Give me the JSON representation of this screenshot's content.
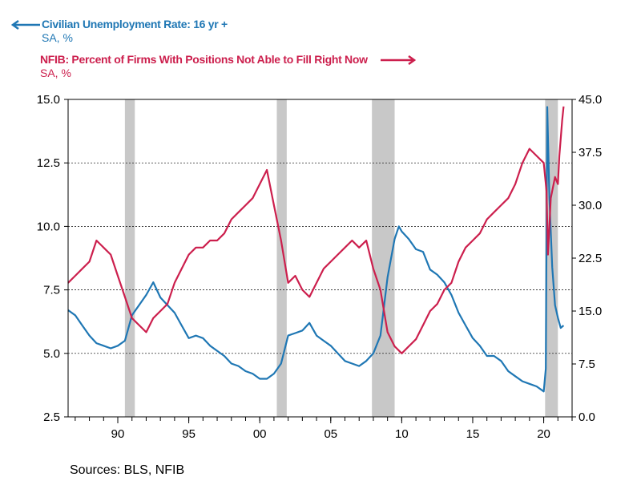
{
  "legend": {
    "series1_title": "Civilian Unemployment Rate: 16 yr +",
    "series1_unit": "SA, %",
    "series2_title": "NFIB: Percent of Firms With Positions Not Able to Fill Right Now",
    "series2_unit": "SA, %"
  },
  "source": "Sources:  BLS, NFIB",
  "colors": {
    "unemployment": "#1f77b4",
    "nfib": "#cc1f4d",
    "recession": "#c8c8c8"
  },
  "chart_data": {
    "type": "line",
    "title": "",
    "x_ticks": [
      {
        "year": 1990,
        "label": "90"
      },
      {
        "year": 1995,
        "label": "95"
      },
      {
        "year": 2000,
        "label": "00"
      },
      {
        "year": 2005,
        "label": "05"
      },
      {
        "year": 2010,
        "label": "10"
      },
      {
        "year": 2015,
        "label": "15"
      },
      {
        "year": 2020,
        "label": "20"
      }
    ],
    "xlim": [
      1986.5,
      2022.0
    ],
    "y_left": {
      "lim": [
        2.5,
        15.0
      ],
      "ticks": [
        "2.5",
        "5.0",
        "7.5",
        "10.0",
        "12.5",
        "15.0"
      ]
    },
    "y_right": {
      "lim": [
        0.0,
        45.0
      ],
      "ticks": [
        "0.0",
        "7.5",
        "15.0",
        "22.5",
        "30.0",
        "37.5",
        "45.0"
      ]
    },
    "grid": "horizontal dashed",
    "recessions": [
      [
        1990.5,
        1991.2
      ],
      [
        2001.2,
        2001.9
      ],
      [
        2007.9,
        2009.5
      ],
      [
        2020.1,
        2021.0
      ]
    ],
    "series": [
      {
        "name": "Civilian Unemployment Rate: 16 yr +",
        "axis": "left",
        "points": [
          [
            1986.5,
            6.7
          ],
          [
            1987.0,
            6.5
          ],
          [
            1987.5,
            6.1
          ],
          [
            1988.0,
            5.7
          ],
          [
            1988.5,
            5.4
          ],
          [
            1989.0,
            5.3
          ],
          [
            1989.5,
            5.2
          ],
          [
            1990.0,
            5.3
          ],
          [
            1990.5,
            5.5
          ],
          [
            1991.0,
            6.5
          ],
          [
            1991.5,
            6.9
          ],
          [
            1992.0,
            7.3
          ],
          [
            1992.5,
            7.8
          ],
          [
            1993.0,
            7.2
          ],
          [
            1993.5,
            6.9
          ],
          [
            1994.0,
            6.6
          ],
          [
            1994.5,
            6.1
          ],
          [
            1995.0,
            5.6
          ],
          [
            1995.5,
            5.7
          ],
          [
            1996.0,
            5.6
          ],
          [
            1996.5,
            5.3
          ],
          [
            1997.0,
            5.1
          ],
          [
            1997.5,
            4.9
          ],
          [
            1998.0,
            4.6
          ],
          [
            1998.5,
            4.5
          ],
          [
            1999.0,
            4.3
          ],
          [
            1999.5,
            4.2
          ],
          [
            2000.0,
            4.0
          ],
          [
            2000.5,
            4.0
          ],
          [
            2001.0,
            4.2
          ],
          [
            2001.5,
            4.6
          ],
          [
            2002.0,
            5.7
          ],
          [
            2002.5,
            5.8
          ],
          [
            2003.0,
            5.9
          ],
          [
            2003.5,
            6.2
          ],
          [
            2004.0,
            5.7
          ],
          [
            2004.5,
            5.5
          ],
          [
            2005.0,
            5.3
          ],
          [
            2005.5,
            5.0
          ],
          [
            2006.0,
            4.7
          ],
          [
            2006.5,
            4.6
          ],
          [
            2007.0,
            4.5
          ],
          [
            2007.5,
            4.7
          ],
          [
            2008.0,
            5.0
          ],
          [
            2008.5,
            5.7
          ],
          [
            2009.0,
            8.0
          ],
          [
            2009.5,
            9.5
          ],
          [
            2009.8,
            10.0
          ],
          [
            2010.0,
            9.8
          ],
          [
            2010.5,
            9.5
          ],
          [
            2011.0,
            9.1
          ],
          [
            2011.5,
            9.0
          ],
          [
            2012.0,
            8.3
          ],
          [
            2012.5,
            8.1
          ],
          [
            2013.0,
            7.8
          ],
          [
            2013.5,
            7.3
          ],
          [
            2014.0,
            6.6
          ],
          [
            2014.5,
            6.1
          ],
          [
            2015.0,
            5.6
          ],
          [
            2015.5,
            5.3
          ],
          [
            2016.0,
            4.9
          ],
          [
            2016.5,
            4.9
          ],
          [
            2017.0,
            4.7
          ],
          [
            2017.5,
            4.3
          ],
          [
            2018.0,
            4.1
          ],
          [
            2018.5,
            3.9
          ],
          [
            2019.0,
            3.8
          ],
          [
            2019.5,
            3.7
          ],
          [
            2020.0,
            3.5
          ],
          [
            2020.15,
            4.4
          ],
          [
            2020.25,
            14.7
          ],
          [
            2020.4,
            11.1
          ],
          [
            2020.6,
            8.4
          ],
          [
            2020.8,
            6.9
          ],
          [
            2021.0,
            6.4
          ],
          [
            2021.2,
            6.0
          ],
          [
            2021.4,
            6.1
          ]
        ]
      },
      {
        "name": "NFIB: Percent of Firms With Positions Not Able to Fill Right Now",
        "axis": "right",
        "points": [
          [
            1986.5,
            19
          ],
          [
            1987.0,
            20
          ],
          [
            1987.5,
            21
          ],
          [
            1988.0,
            22
          ],
          [
            1988.5,
            25
          ],
          [
            1989.0,
            24
          ],
          [
            1989.5,
            23
          ],
          [
            1990.0,
            20
          ],
          [
            1990.5,
            17
          ],
          [
            1991.0,
            14
          ],
          [
            1991.5,
            13
          ],
          [
            1992.0,
            12
          ],
          [
            1992.5,
            14
          ],
          [
            1993.0,
            15
          ],
          [
            1993.5,
            16
          ],
          [
            1994.0,
            19
          ],
          [
            1994.5,
            21
          ],
          [
            1995.0,
            23
          ],
          [
            1995.5,
            24
          ],
          [
            1996.0,
            24
          ],
          [
            1996.5,
            25
          ],
          [
            1997.0,
            25
          ],
          [
            1997.5,
            26
          ],
          [
            1998.0,
            28
          ],
          [
            1998.5,
            29
          ],
          [
            1999.0,
            30
          ],
          [
            1999.5,
            31
          ],
          [
            2000.0,
            33
          ],
          [
            2000.5,
            35
          ],
          [
            2001.0,
            30
          ],
          [
            2001.5,
            25
          ],
          [
            2002.0,
            19
          ],
          [
            2002.5,
            20
          ],
          [
            2003.0,
            18
          ],
          [
            2003.5,
            17
          ],
          [
            2004.0,
            19
          ],
          [
            2004.5,
            21
          ],
          [
            2005.0,
            22
          ],
          [
            2005.5,
            23
          ],
          [
            2006.0,
            24
          ],
          [
            2006.5,
            25
          ],
          [
            2007.0,
            24
          ],
          [
            2007.5,
            25
          ],
          [
            2008.0,
            21
          ],
          [
            2008.5,
            18
          ],
          [
            2009.0,
            12
          ],
          [
            2009.5,
            10
          ],
          [
            2010.0,
            9
          ],
          [
            2010.5,
            10
          ],
          [
            2011.0,
            11
          ],
          [
            2011.5,
            13
          ],
          [
            2012.0,
            15
          ],
          [
            2012.5,
            16
          ],
          [
            2013.0,
            18
          ],
          [
            2013.5,
            19
          ],
          [
            2014.0,
            22
          ],
          [
            2014.5,
            24
          ],
          [
            2015.0,
            25
          ],
          [
            2015.5,
            26
          ],
          [
            2016.0,
            28
          ],
          [
            2016.5,
            29
          ],
          [
            2017.0,
            30
          ],
          [
            2017.5,
            31
          ],
          [
            2018.0,
            33
          ],
          [
            2018.5,
            36
          ],
          [
            2019.0,
            38
          ],
          [
            2019.5,
            37
          ],
          [
            2020.0,
            36
          ],
          [
            2020.2,
            32
          ],
          [
            2020.3,
            23
          ],
          [
            2020.5,
            31
          ],
          [
            2020.8,
            34
          ],
          [
            2021.0,
            33
          ],
          [
            2021.1,
            37
          ],
          [
            2021.3,
            42
          ],
          [
            2021.4,
            44
          ]
        ]
      }
    ]
  }
}
